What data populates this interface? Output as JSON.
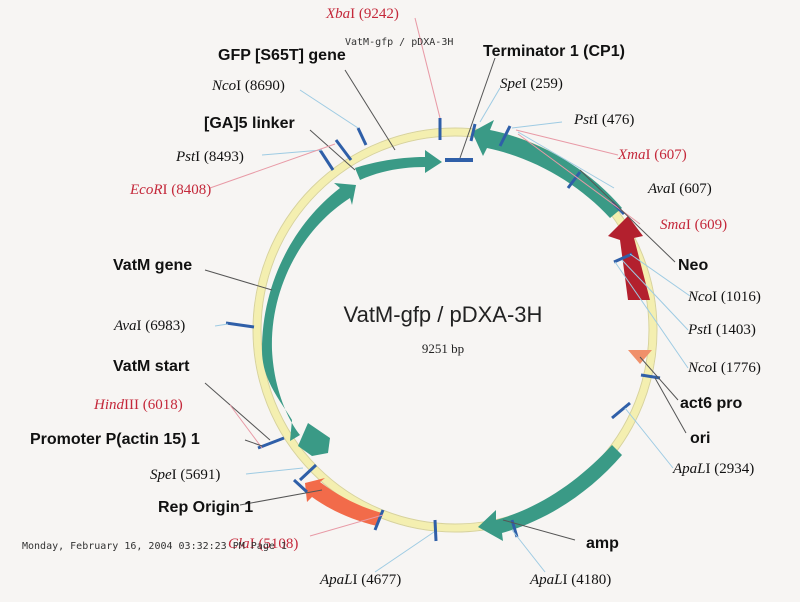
{
  "plasmid": {
    "name": "VatM-gfp / pDXA-3H",
    "size": "9251 bp",
    "header": "VatM-gfp / pDXA-3H"
  },
  "footer": {
    "timestamp": "Monday, February 16, 2004 03:32:23 PM Page 1"
  },
  "features": [
    {
      "key": "gfp",
      "label": "GFP [S65T] gene"
    },
    {
      "key": "term",
      "label": "Terminator 1 (CP1)"
    },
    {
      "key": "ga5",
      "label": "[GA]5 linker"
    },
    {
      "key": "neo",
      "label": "Neo"
    },
    {
      "key": "vatm",
      "label": "VatM gene"
    },
    {
      "key": "act6",
      "label": "act6 pro"
    },
    {
      "key": "ori",
      "label": "ori"
    },
    {
      "key": "vstart",
      "label": "VatM start"
    },
    {
      "key": "prom",
      "label": "Promoter P(actin 15) 1"
    },
    {
      "key": "rep",
      "label": "Rep Origin 1"
    },
    {
      "key": "amp",
      "label": "amp"
    }
  ],
  "sites": [
    {
      "enzyme": "Xba",
      "suffix": "I",
      "pos": "(9242)",
      "color": "red"
    },
    {
      "enzyme": "Spe",
      "suffix": "I",
      "pos": "(259)",
      "color": "black"
    },
    {
      "enzyme": "Nco",
      "suffix": "I",
      "pos": "(8690)",
      "color": "black"
    },
    {
      "enzyme": "Pst",
      "suffix": "I",
      "pos": "(476)",
      "color": "black"
    },
    {
      "enzyme": "Xma",
      "suffix": "I",
      "pos": "(607)",
      "color": "red"
    },
    {
      "enzyme": "Pst",
      "suffix": "I",
      "pos": "(8493)",
      "color": "black"
    },
    {
      "enzyme": "Ava",
      "suffix": "I",
      "pos": "(607)",
      "color": "black"
    },
    {
      "enzyme": "EcoR",
      "suffix": "I",
      "pos": "(8408)",
      "color": "red"
    },
    {
      "enzyme": "Sma",
      "suffix": "I",
      "pos": "(609)",
      "color": "red"
    },
    {
      "enzyme": "Nco",
      "suffix": "I",
      "pos": "(1016)",
      "color": "black"
    },
    {
      "enzyme": "Ava",
      "suffix": "I",
      "pos": "(6983)",
      "color": "black"
    },
    {
      "enzyme": "Pst",
      "suffix": "I",
      "pos": "(1403)",
      "color": "black"
    },
    {
      "enzyme": "Nco",
      "suffix": "I",
      "pos": "(1776)",
      "color": "black"
    },
    {
      "enzyme": "Hind",
      "suffix": "III",
      "pos": "(6018)",
      "color": "red"
    },
    {
      "enzyme": "ApaL",
      "suffix": "I",
      "pos": "(2934)",
      "color": "black"
    },
    {
      "enzyme": "Spe",
      "suffix": "I",
      "pos": "(5691)",
      "color": "black"
    },
    {
      "enzyme": "Cla",
      "suffix": "I",
      "pos": "(5108)",
      "color": "red"
    },
    {
      "enzyme": "ApaL",
      "suffix": "I",
      "pos": "(4677)",
      "color": "black"
    },
    {
      "enzyme": "ApaL",
      "suffix": "I",
      "pos": "(4180)",
      "color": "black"
    }
  ],
  "colors": {
    "feature_teal": "#3a9a86",
    "neo_red": "#b3202e",
    "act6_salmon": "#f0906a",
    "rep_orange": "#f26b4a",
    "tick_blue": "#2f5fa8",
    "ring_yellow": "#f4efb0",
    "site_red": "#c4283a"
  }
}
